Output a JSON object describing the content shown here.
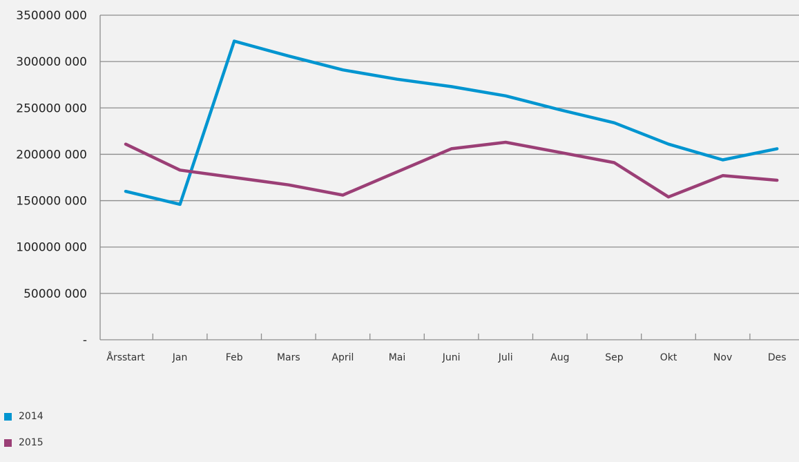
{
  "chart_data": {
    "type": "line",
    "categories": [
      "Årsstart",
      "Jan",
      "Feb",
      "Mars",
      "April",
      "Mai",
      "Juni",
      "Juli",
      "Aug",
      "Sep",
      "Okt",
      "Nov",
      "Des"
    ],
    "series": [
      {
        "name": "2014",
        "color": "#0095d0",
        "values": [
          160000,
          146000,
          322000,
          306000,
          291000,
          281000,
          273000,
          263000,
          248000,
          234000,
          211000,
          194000,
          206000
        ]
      },
      {
        "name": "2015",
        "color": "#9b3f76",
        "values": [
          211000,
          183000,
          175000,
          167000,
          156000,
          181000,
          206000,
          213000,
          202000,
          191000,
          154000,
          177000,
          172000
        ]
      }
    ],
    "y_ticks": [
      {
        "value": 0,
        "label": "-"
      },
      {
        "value": 50000,
        "label": "50000 000"
      },
      {
        "value": 100000,
        "label": "100000 000"
      },
      {
        "value": 150000,
        "label": "150000 000"
      },
      {
        "value": 200000,
        "label": "200000 000"
      },
      {
        "value": 250000,
        "label": "250000 000"
      },
      {
        "value": 300000,
        "label": "300000 000"
      },
      {
        "value": 350000,
        "label": "350000 000"
      }
    ],
    "ylim": [
      0,
      350000
    ],
    "grid": true,
    "legend_position": "bottom-left",
    "colors": {
      "grid": "#8c8c8c",
      "axis": "#8c8c8c"
    }
  }
}
